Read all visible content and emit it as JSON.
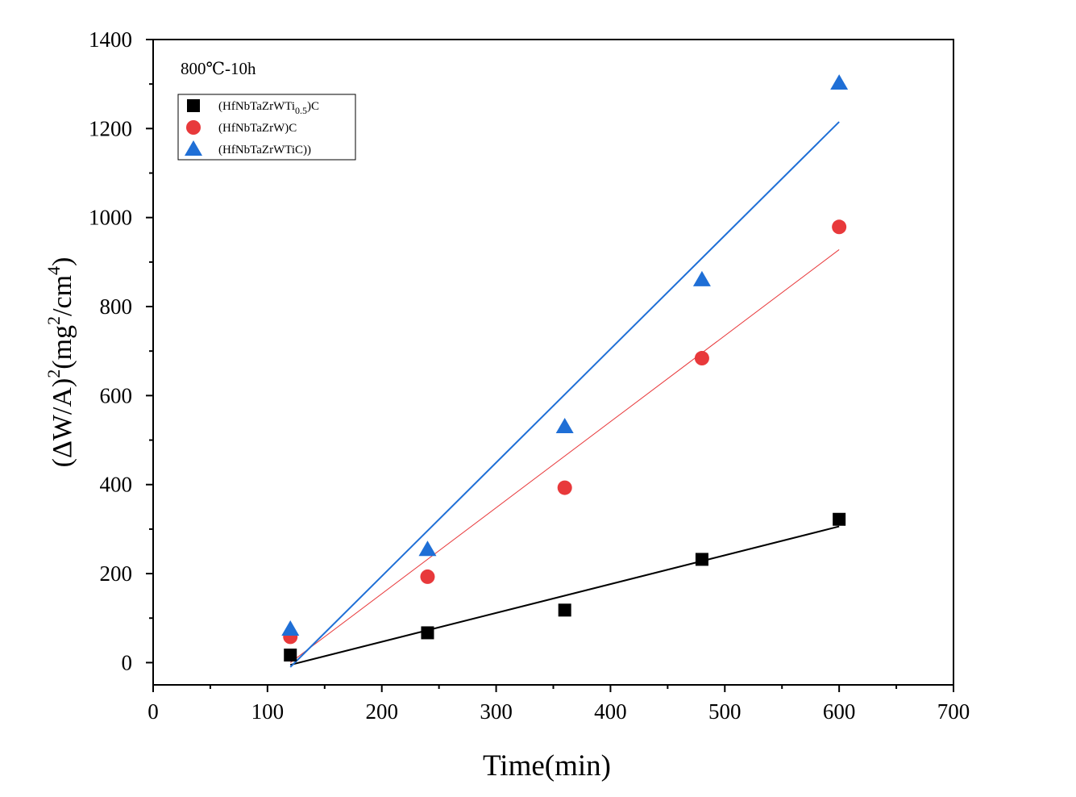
{
  "chart_data": {
    "type": "scatter",
    "annotation": "800℃-10h",
    "xlabel": "Time(min)",
    "ylabel": {
      "prefix": "(ΔW/A)",
      "sup1": "2",
      "mid": "(mg",
      "sup2": "2",
      "mid2": "/cm",
      "sup3": "4",
      "suffix": ")"
    },
    "xlim": [
      0,
      700
    ],
    "ylim": [
      -50,
      1400
    ],
    "x_ticks": [
      "0",
      "100",
      "200",
      "300",
      "400",
      "500",
      "600",
      "700"
    ],
    "y_ticks": [
      "0",
      "200",
      "400",
      "600",
      "800",
      "1000",
      "1200",
      "1400"
    ],
    "x_tick_values": [
      0,
      100,
      200,
      300,
      400,
      500,
      600,
      700
    ],
    "y_tick_values": [
      0,
      200,
      400,
      600,
      800,
      1000,
      1200,
      1400
    ],
    "grid": false,
    "legend_position": "top-left",
    "series": [
      {
        "name": "(HfNbTaZrWTi0.5)C",
        "legend": {
          "base": "(HfNbTaZrWTi",
          "sub": "0.5",
          "tail": ")C"
        },
        "marker": "square",
        "color": "#000000",
        "x": [
          120,
          240,
          360,
          480,
          600
        ],
        "y": [
          17,
          67,
          118,
          232,
          322
        ],
        "fit": {
          "x": [
            120,
            600
          ],
          "y": [
            -5,
            306
          ]
        }
      },
      {
        "name": "(HfNbTaZrW)C",
        "legend": {
          "base": "(HfNbTaZrW)C",
          "sub": "",
          "tail": ""
        },
        "marker": "circle",
        "color": "#e8393b",
        "x": [
          120,
          240,
          360,
          480,
          600
        ],
        "y": [
          58,
          193,
          393,
          684,
          979
        ],
        "fit": {
          "x": [
            120,
            600
          ],
          "y": [
            0,
            928
          ]
        }
      },
      {
        "name": "(HfNbTaZrWTiC))",
        "legend": {
          "base": "(HfNbTaZrWTiC))",
          "sub": "",
          "tail": ""
        },
        "marker": "triangle",
        "color": "#1f6fd6",
        "x": [
          120,
          240,
          360,
          480,
          600
        ],
        "y": [
          75,
          254,
          530,
          860,
          1302
        ],
        "fit": {
          "x": [
            120,
            600
          ],
          "y": [
            -10,
            1215
          ]
        }
      }
    ]
  }
}
